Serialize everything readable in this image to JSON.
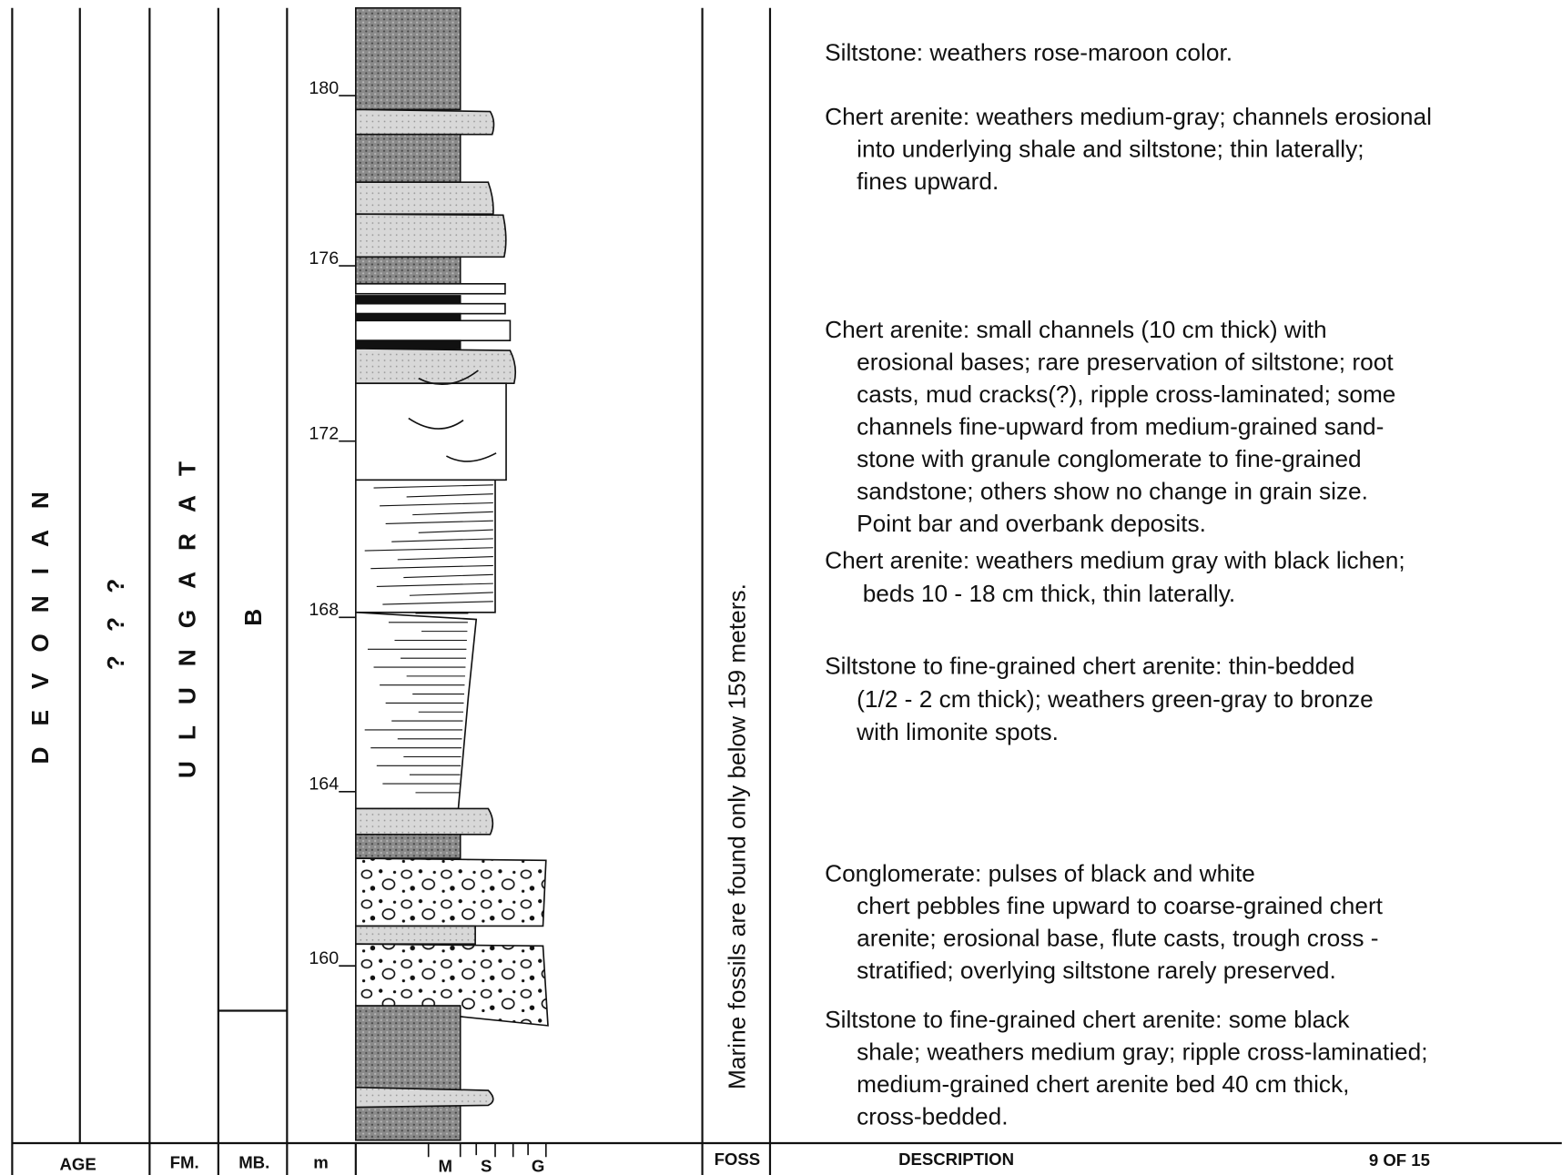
{
  "header": {
    "age": "AGE",
    "fm": "FM.",
    "mb": "MB.",
    "m": "m",
    "grain": [
      "M",
      "S",
      "G"
    ],
    "foss": "FOSS",
    "description": "DESCRIPTION",
    "page": "9  OF  15"
  },
  "column": {
    "age": "DEVONIAN",
    "age_query": "???",
    "formation": "ULUNGARAT",
    "member": "B",
    "fossil_note": "Marine fossils are found only below 159 meters.",
    "meters": [
      180,
      176,
      172,
      168,
      164,
      160
    ]
  },
  "descriptions": [
    {
      "lines": [
        "Siltstone: weathers rose-maroon color."
      ]
    },
    {
      "lines": [
        "Chert arenite: weathers medium-gray; channels erosional",
        "into underlying shale and siltstone; thin laterally;",
        "fines upward."
      ]
    },
    {
      "lines": [
        "Chert arenite: small channels (10 cm thick) with",
        "erosional bases; rare preservation of siltstone; root",
        "casts, mud cracks(?), ripple cross-laminated; some",
        "channels fine-upward from medium-grained sand-",
        "stone with granule conglomerate to fine-grained",
        "sandstone; others show no change in grain size.",
        "Point bar and overbank deposits."
      ]
    },
    {
      "lines": [
        "Chert arenite: weathers medium gray with black lichen;",
        "beds 10 - 18 cm thick, thin laterally."
      ]
    },
    {
      "lines": [
        "Siltstone to fine-grained chert arenite: thin-bedded",
        "(1/2 - 2 cm thick); weathers green-gray to bronze",
        "with limonite spots."
      ]
    },
    {
      "lines": [
        "Conglomerate: pulses of black and white",
        "chert pebbles fine upward to coarse-grained chert",
        "arenite; erosional base, flute casts, trough cross -",
        "stratified; overlying siltstone rarely preserved."
      ]
    },
    {
      "lines": [
        "Siltstone to fine-grained chert arenite: some black",
        "shale; weathers medium gray; ripple cross-laminatied;",
        "medium-grained chert arenite bed 40 cm thick,",
        "cross-bedded."
      ]
    }
  ]
}
